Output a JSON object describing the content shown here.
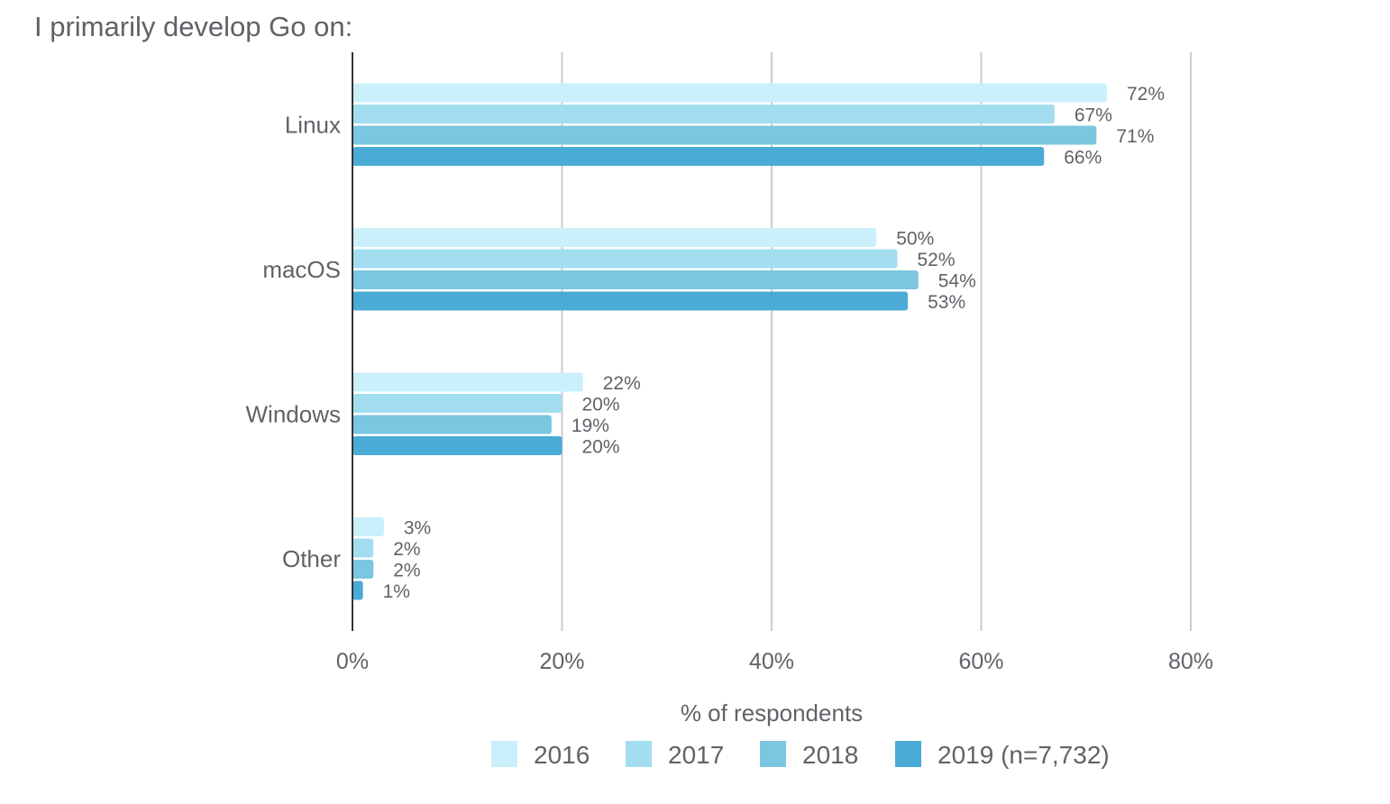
{
  "chart_data": {
    "type": "bar",
    "orientation": "horizontal",
    "title": "I primarily develop Go on:",
    "xlabel": "% of respondents",
    "ylabel": "",
    "xlim": [
      0,
      80
    ],
    "x_ticks": [
      "0%",
      "20%",
      "40%",
      "60%",
      "80%"
    ],
    "grid": "vertical",
    "legend_position": "bottom",
    "categories": [
      "Linux",
      "macOS",
      "Windows",
      "Other"
    ],
    "series": [
      {
        "name": "2016",
        "color": "#c9f0fb",
        "values": [
          72,
          50,
          22,
          3
        ]
      },
      {
        "name": "2017",
        "color": "#a3def0",
        "values": [
          67,
          52,
          20,
          2
        ]
      },
      {
        "name": "2018",
        "color": "#7bc6e0",
        "values": [
          71,
          54,
          19,
          2
        ]
      },
      {
        "name": "2019 (n=7,732)",
        "color": "#4aabd6",
        "values": [
          66,
          53,
          20,
          1
        ]
      }
    ],
    "value_suffix": "%"
  }
}
